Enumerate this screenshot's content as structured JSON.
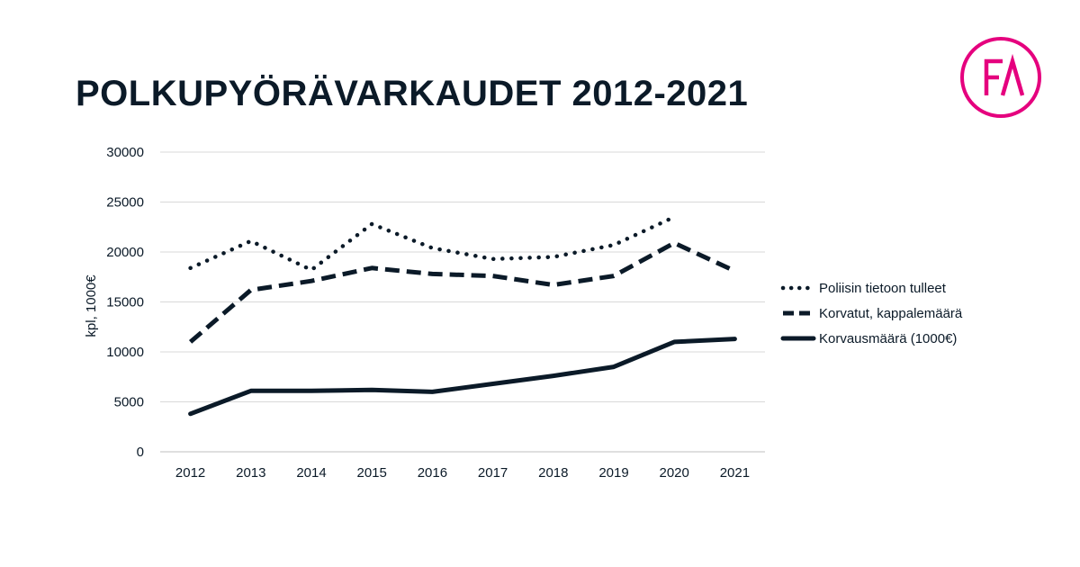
{
  "page": {
    "title": "POLKUPYÖRÄVARKAUDET 2012-2021",
    "logo_text": "FA",
    "logo_color": "#e5007e",
    "text_color": "#0b1a28"
  },
  "chart_data": {
    "type": "line",
    "title": "POLKUPYÖRÄVARKAUDET 2012-2021",
    "xlabel": "",
    "ylabel": "kpl, 1000€",
    "categories": [
      "2012",
      "2013",
      "2014",
      "2015",
      "2016",
      "2017",
      "2018",
      "2019",
      "2020",
      "2021"
    ],
    "ylim": [
      0,
      30000
    ],
    "yticks": [
      "0",
      "5000",
      "10000",
      "15000",
      "20000",
      "25000",
      "30000"
    ],
    "grid": true,
    "legend_position": "right",
    "series": [
      {
        "name": "Poliisin tietoon tulleet",
        "style": "dotted",
        "color": "#0b1a28",
        "values": [
          18400,
          21100,
          18200,
          22800,
          20400,
          19300,
          19500,
          20700,
          23500,
          null
        ]
      },
      {
        "name": "Korvatut, kappalemäärä",
        "style": "dashed",
        "color": "#0b1a28",
        "values": [
          11000,
          16200,
          17100,
          18400,
          17800,
          17600,
          16700,
          17600,
          20900,
          18100
        ]
      },
      {
        "name": "Korvausmäärä (1000€)",
        "style": "solid",
        "color": "#0b1a28",
        "values": [
          3800,
          6100,
          6100,
          6200,
          6000,
          6800,
          7600,
          8500,
          11000,
          11300
        ]
      }
    ]
  }
}
